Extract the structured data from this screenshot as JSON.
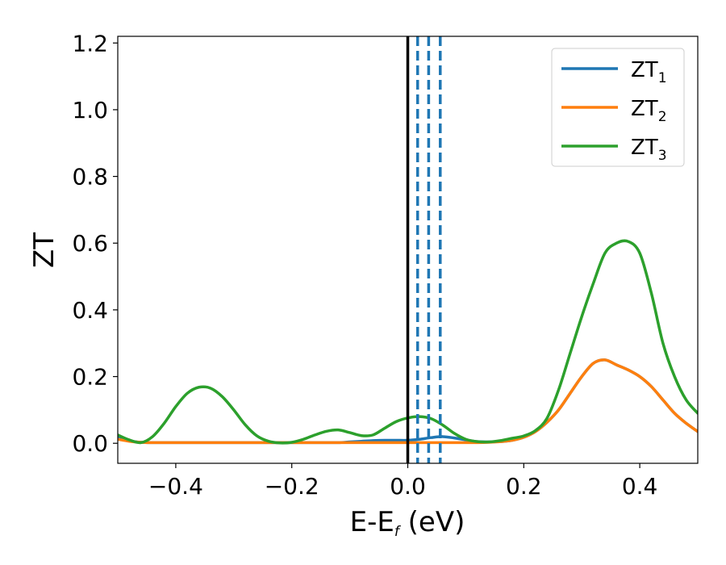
{
  "chart_data": {
    "type": "line",
    "xlabel": "E-E",
    "xlabel_sub": "f",
    "xlabel_unit": " (eV)",
    "ylabel": "ZT",
    "xlim": [
      -0.5,
      0.5
    ],
    "ylim": [
      -0.06,
      1.22
    ],
    "xticks": [
      -0.4,
      -0.2,
      0.0,
      0.2,
      0.4
    ],
    "xtick_labels": [
      "−0.4",
      "−0.2",
      "0.0",
      "0.2",
      "0.4"
    ],
    "yticks": [
      0.0,
      0.2,
      0.4,
      0.6,
      0.8,
      1.0,
      1.2
    ],
    "ytick_labels": [
      "0.0",
      "0.2",
      "0.4",
      "0.6",
      "0.8",
      "1.0",
      "1.2"
    ],
    "grid": false,
    "legend_position": "top-right",
    "vlines": [
      {
        "x": 0.0,
        "style": "solid",
        "color": "#000000"
      },
      {
        "x": 0.017,
        "style": "dashed",
        "color": "#1f77b4"
      },
      {
        "x": 0.036,
        "style": "dashed",
        "color": "#1f77b4"
      },
      {
        "x": 0.056,
        "style": "dashed",
        "color": "#1f77b4"
      }
    ],
    "x": [
      -0.5,
      -0.48,
      -0.46,
      -0.44,
      -0.42,
      -0.4,
      -0.38,
      -0.36,
      -0.34,
      -0.32,
      -0.3,
      -0.28,
      -0.26,
      -0.24,
      -0.22,
      -0.2,
      -0.18,
      -0.16,
      -0.14,
      -0.12,
      -0.1,
      -0.08,
      -0.06,
      -0.04,
      -0.02,
      0.0,
      0.02,
      0.04,
      0.06,
      0.08,
      0.1,
      0.12,
      0.14,
      0.16,
      0.18,
      0.2,
      0.22,
      0.24,
      0.26,
      0.28,
      0.3,
      0.32,
      0.34,
      0.36,
      0.38,
      0.4,
      0.42,
      0.44,
      0.46,
      0.48,
      0.5
    ],
    "series": [
      {
        "name": "ZT",
        "sub": "1",
        "color": "#1f77b4",
        "values": [
          0.02,
          0.008,
          0.003,
          0.002,
          0.002,
          0.002,
          0.002,
          0.002,
          0.002,
          0.002,
          0.002,
          0.002,
          0.002,
          0.002,
          0.002,
          0.002,
          0.002,
          0.002,
          0.002,
          0.002,
          0.004,
          0.006,
          0.008,
          0.009,
          0.009,
          0.009,
          0.012,
          0.017,
          0.02,
          0.016,
          0.01,
          0.005,
          0.004,
          0.005,
          0.009,
          0.018,
          0.035,
          0.063,
          0.1,
          0.15,
          0.2,
          0.24,
          0.25,
          0.235,
          0.22,
          0.2,
          0.17,
          0.13,
          0.09,
          0.06,
          0.035
        ]
      },
      {
        "name": "ZT",
        "sub": "2",
        "color": "#ff7f0e",
        "values": [
          0.012,
          0.006,
          0.003,
          0.002,
          0.002,
          0.002,
          0.002,
          0.002,
          0.002,
          0.002,
          0.002,
          0.002,
          0.002,
          0.002,
          0.002,
          0.002,
          0.002,
          0.002,
          0.002,
          0.002,
          0.002,
          0.002,
          0.002,
          0.002,
          0.002,
          0.002,
          0.002,
          0.002,
          0.002,
          0.002,
          0.002,
          0.002,
          0.003,
          0.005,
          0.009,
          0.018,
          0.035,
          0.063,
          0.1,
          0.15,
          0.2,
          0.24,
          0.25,
          0.235,
          0.22,
          0.2,
          0.17,
          0.13,
          0.09,
          0.06,
          0.035
        ]
      },
      {
        "name": "ZT",
        "sub": "3",
        "color": "#2ca02c",
        "values": [
          0.025,
          0.01,
          0.002,
          0.02,
          0.06,
          0.11,
          0.15,
          0.168,
          0.165,
          0.14,
          0.1,
          0.055,
          0.022,
          0.006,
          0.001,
          0.003,
          0.012,
          0.025,
          0.036,
          0.04,
          0.032,
          0.023,
          0.025,
          0.045,
          0.065,
          0.076,
          0.08,
          0.074,
          0.055,
          0.03,
          0.012,
          0.005,
          0.004,
          0.008,
          0.015,
          0.022,
          0.038,
          0.075,
          0.16,
          0.27,
          0.38,
          0.48,
          0.57,
          0.6,
          0.605,
          0.57,
          0.45,
          0.3,
          0.2,
          0.13,
          0.09
        ]
      }
    ]
  }
}
